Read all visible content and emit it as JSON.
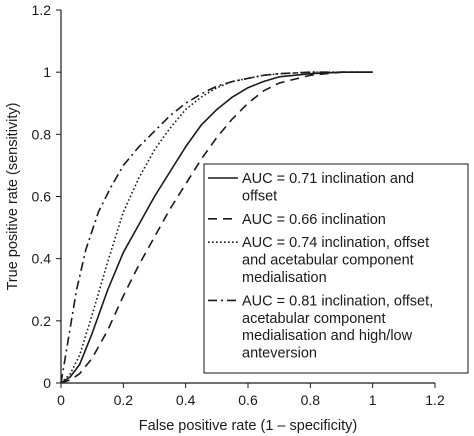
{
  "chart_data": {
    "type": "line",
    "title": "",
    "xlabel": "False positive rate (1 – specificity)",
    "ylabel": "True positive rate (sensitivity)",
    "xlim": [
      0,
      1.2
    ],
    "ylim": [
      0,
      1.2
    ],
    "x_ticks": [
      "0",
      "0.2",
      "0.4",
      "0.6",
      "0.8",
      "1",
      "1.2"
    ],
    "y_ticks": [
      "0",
      "0.2",
      "0.4",
      "0.6",
      "0.8",
      "1",
      "1.2"
    ],
    "grid": false,
    "legend_position": "center-right",
    "series": [
      {
        "name": "AUC = 0.71 inclination and offset",
        "legend_lines": [
          "AUC = 0.71 inclination and",
          "offset"
        ],
        "style": "solid",
        "color": "#1a1a1a",
        "x": [
          0,
          0.03,
          0.06,
          0.1,
          0.15,
          0.2,
          0.25,
          0.3,
          0.35,
          0.4,
          0.45,
          0.5,
          0.55,
          0.6,
          0.65,
          0.7,
          0.8,
          0.9,
          1.0
        ],
        "y": [
          0,
          0.02,
          0.06,
          0.16,
          0.3,
          0.42,
          0.51,
          0.6,
          0.68,
          0.76,
          0.83,
          0.88,
          0.92,
          0.95,
          0.97,
          0.985,
          0.995,
          1.0,
          1.0
        ]
      },
      {
        "name": "AUC = 0.66 inclination",
        "legend_lines": [
          "AUC = 0.66 inclination"
        ],
        "style": "dashed",
        "color": "#1a1a1a",
        "x": [
          0,
          0.03,
          0.06,
          0.1,
          0.15,
          0.2,
          0.25,
          0.3,
          0.35,
          0.4,
          0.45,
          0.5,
          0.55,
          0.6,
          0.65,
          0.7,
          0.8,
          0.9,
          1.0
        ],
        "y": [
          0,
          0.01,
          0.03,
          0.08,
          0.17,
          0.28,
          0.38,
          0.47,
          0.56,
          0.64,
          0.72,
          0.79,
          0.85,
          0.9,
          0.94,
          0.965,
          0.99,
          1.0,
          1.0
        ]
      },
      {
        "name": "AUC = 0.74 inclination, offset and acetabular component medialisation",
        "legend_lines": [
          "AUC = 0.74 inclination, offset",
          "and acetabular component",
          "medialisation"
        ],
        "style": "dotted",
        "color": "#1a1a1a",
        "x": [
          0,
          0.03,
          0.06,
          0.1,
          0.15,
          0.2,
          0.25,
          0.3,
          0.35,
          0.4,
          0.45,
          0.5,
          0.55,
          0.6,
          0.65,
          0.7,
          0.8,
          0.9,
          1.0
        ],
        "y": [
          0,
          0.03,
          0.09,
          0.22,
          0.39,
          0.55,
          0.66,
          0.75,
          0.82,
          0.88,
          0.92,
          0.95,
          0.97,
          0.98,
          0.99,
          0.995,
          1.0,
          1.0,
          1.0
        ]
      },
      {
        "name": "AUC = 0.81 inclination, offset, acetabular component medialisation and high/low anteversion",
        "legend_lines": [
          "AUC = 0.81 inclination, offset,",
          "acetabular component",
          "medialisation and high/low",
          "anteversion"
        ],
        "style": "dashdot",
        "color": "#1a1a1a",
        "x": [
          0,
          0.02,
          0.05,
          0.08,
          0.12,
          0.16,
          0.2,
          0.25,
          0.3,
          0.35,
          0.4,
          0.45,
          0.5,
          0.55,
          0.6,
          0.65,
          0.7,
          0.8,
          0.9,
          1.0
        ],
        "y": [
          0,
          0.12,
          0.3,
          0.43,
          0.55,
          0.63,
          0.7,
          0.76,
          0.81,
          0.86,
          0.9,
          0.93,
          0.955,
          0.97,
          0.98,
          0.99,
          0.995,
          1.0,
          1.0,
          1.0
        ]
      }
    ]
  }
}
